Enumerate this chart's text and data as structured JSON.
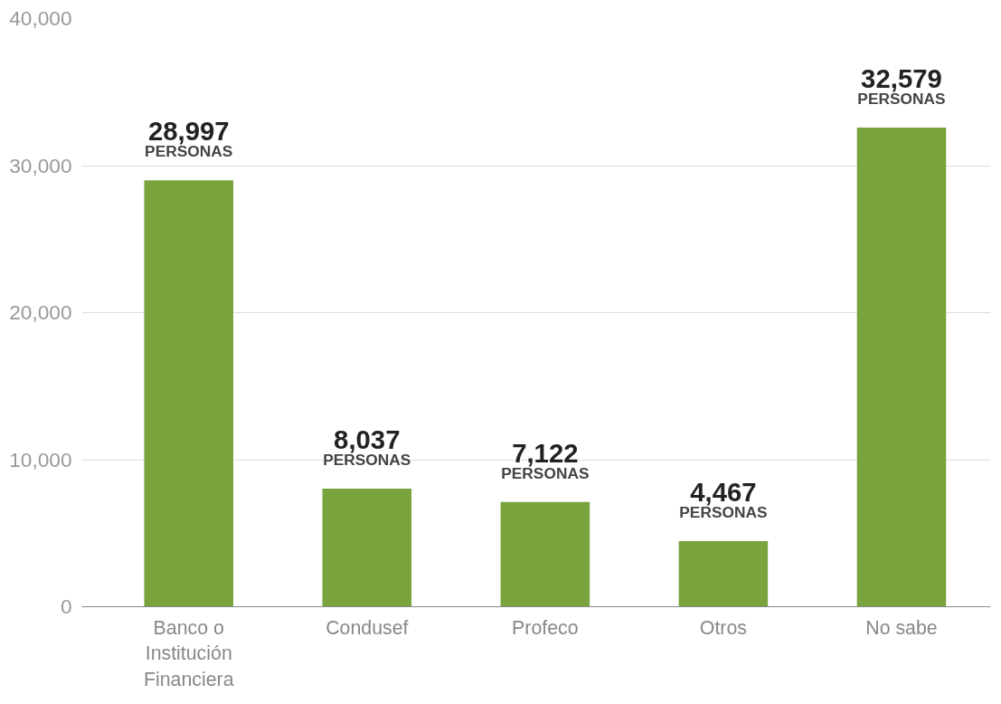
{
  "chart_data": {
    "type": "bar",
    "categories": [
      "Banco o Institución Financiera",
      "Condusef",
      "Profeco",
      "Otros",
      "No sabe"
    ],
    "values": [
      28997,
      8037,
      7122,
      4467,
      32579
    ],
    "value_labels": [
      "28,997\nPERSONAS",
      "8,037\nPERSONAS",
      "7,122\nPERSONAS",
      "4,467\nPERSONAS",
      "32,579\nPERSONAS"
    ],
    "color": "#79a33d",
    "ylim": [
      0,
      40000
    ],
    "yticks": [
      {
        "value": 0,
        "label": "0"
      },
      {
        "value": 10000,
        "label": "10,000"
      },
      {
        "value": 20000,
        "label": "20,000"
      },
      {
        "value": 30000,
        "label": "30,000"
      },
      {
        "value": 40000,
        "label": "40,000"
      }
    ],
    "grid": "y"
  }
}
